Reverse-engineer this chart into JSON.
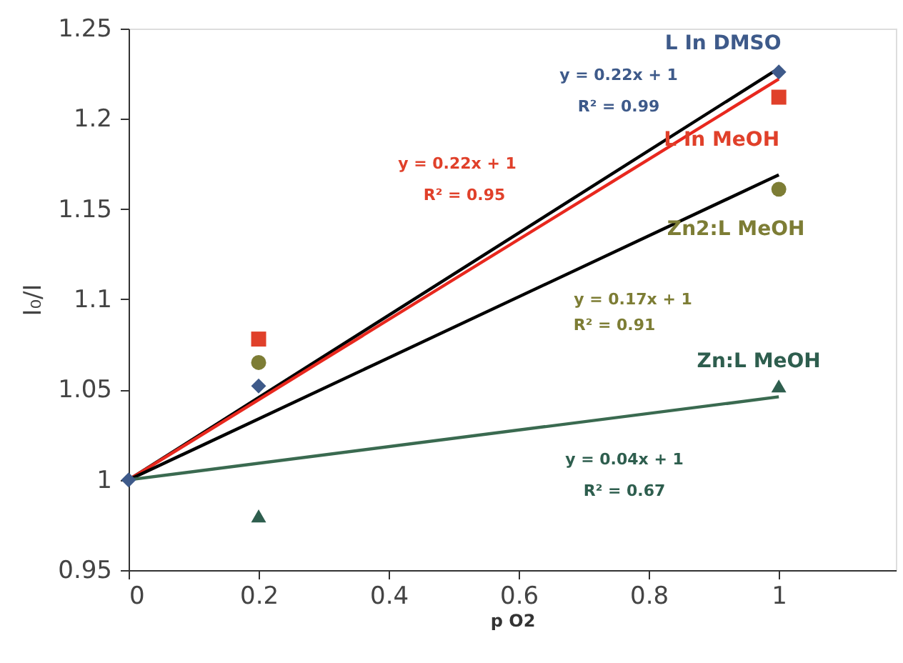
{
  "chart_data": {
    "type": "scatter",
    "xlabel": "p O2",
    "ylabel": "I₀/I",
    "xlim": [
      0,
      1.18
    ],
    "xticks": [
      0,
      0.2,
      0.4,
      0.6,
      0.8,
      1
    ],
    "ylim": [
      0.95,
      1.25
    ],
    "yticks": [
      0.95,
      1,
      1.05,
      1.1,
      1.15,
      1.2,
      1.25
    ],
    "grid": false,
    "series": [
      {
        "name": "L In DMSO",
        "color": "#3e5a8a",
        "marker": "diamond",
        "x": [
          0,
          0.2,
          1
        ],
        "values": [
          1,
          1.052,
          1.226
        ]
      },
      {
        "name": "L In  MeOH",
        "color": "#e0402a",
        "marker": "square",
        "x": [
          0.2,
          1
        ],
        "values": [
          1.078,
          1.212
        ]
      },
      {
        "name": "Zn2:L MeOH",
        "color": "#7d7d35",
        "marker": "circle",
        "x": [
          0.2,
          1
        ],
        "values": [
          1.065,
          1.161
        ]
      },
      {
        "name": "Zn:L MeOH",
        "color": "#2e5e4e",
        "marker": "triangle",
        "x": [
          0.2,
          1
        ],
        "values": [
          0.98,
          1.052
        ]
      },
      {
        "type": "line",
        "color": "#000000",
        "marker": "none",
        "x": [
          0,
          1
        ],
        "values": [
          1,
          1.228
        ]
      },
      {
        "type": "line",
        "color": "#e8281e",
        "marker": "none",
        "x": [
          0,
          1
        ],
        "values": [
          1,
          1.222
        ]
      },
      {
        "type": "line",
        "color": "#000000",
        "marker": "none",
        "x": [
          0,
          1
        ],
        "values": [
          1,
          1.169
        ]
      },
      {
        "type": "line",
        "color": "#3a6a50",
        "marker": "none",
        "x": [
          0,
          1
        ],
        "values": [
          1,
          1.046
        ]
      }
    ],
    "annotations": [
      "y = 0.22x + 1",
      "R² = 0.99",
      "y = 0.22x + 1",
      "R² = 0.95",
      "y = 0.17x +  1",
      "R² = 0.91",
      "y = 0.04x + 1",
      "R² = 0.67"
    ]
  }
}
